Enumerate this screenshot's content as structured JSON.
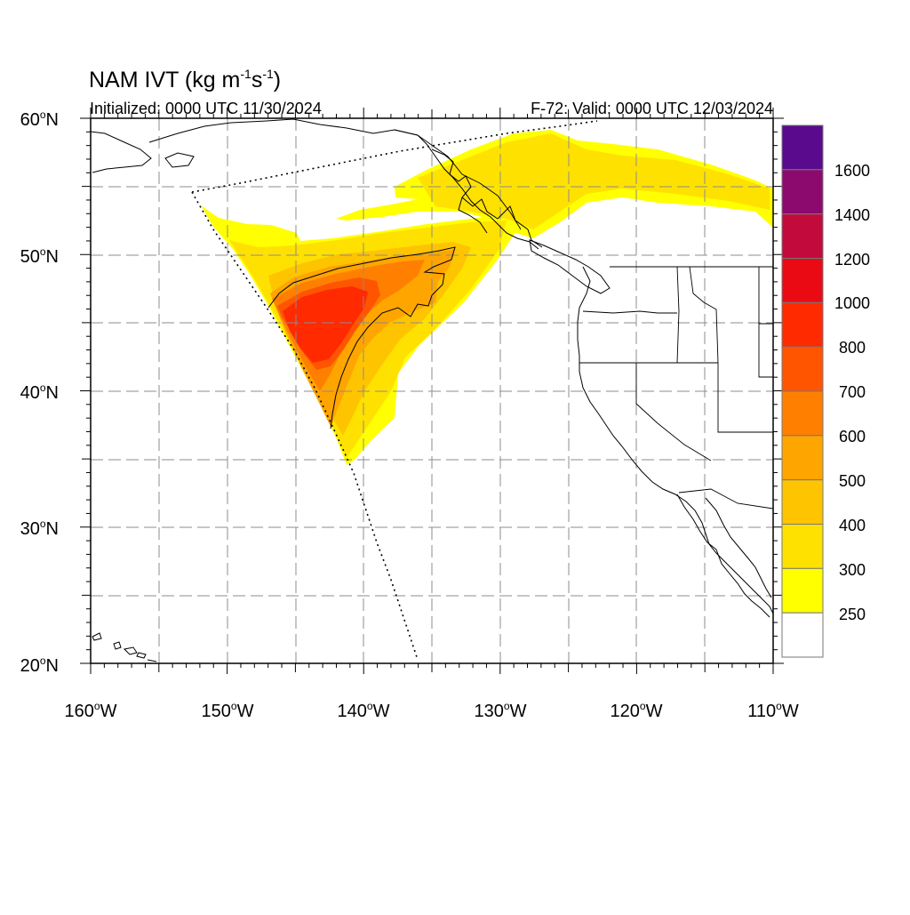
{
  "title_main": "NAM IVT (kg m",
  "title_sup1": "-1",
  "title_mid": "s",
  "title_sup2": "-1",
  "title_close": ")",
  "initialized": "Initialized: 0000 UTC 11/30/2024",
  "valid": "F-72: Valid: 0000 UTC 12/03/2024",
  "lat_labels": [
    {
      "num": "60",
      "hem": "N"
    },
    {
      "num": "50",
      "hem": "N"
    },
    {
      "num": "40",
      "hem": "N"
    },
    {
      "num": "30",
      "hem": "N"
    },
    {
      "num": "20",
      "hem": "N"
    }
  ],
  "lon_labels": [
    {
      "num": "160",
      "hem": "W"
    },
    {
      "num": "150",
      "hem": "W"
    },
    {
      "num": "140",
      "hem": "W"
    },
    {
      "num": "130",
      "hem": "W"
    },
    {
      "num": "120",
      "hem": "W"
    },
    {
      "num": "110",
      "hem": "W"
    }
  ],
  "colorbar": {
    "labels": [
      "1600",
      "1400",
      "1200",
      "1000",
      "800",
      "700",
      "600",
      "500",
      "400",
      "300",
      "250"
    ],
    "colors_top_to_bottom": [
      "#5a0a8c",
      "#8c0a6e",
      "#c20a3c",
      "#ea0a14",
      "#ff2a00",
      "#ff5500",
      "#ff8000",
      "#ffa500",
      "#ffc400",
      "#ffe100",
      "#ffff00",
      "#ffffff"
    ]
  },
  "ivt_colors": {
    "c250": "#ffff00",
    "c300": "#ffe100",
    "c400": "#ffc400",
    "c500": "#ffa500",
    "c600": "#ff8000",
    "c700": "#ff5500",
    "c800": "#ff2a00"
  }
}
